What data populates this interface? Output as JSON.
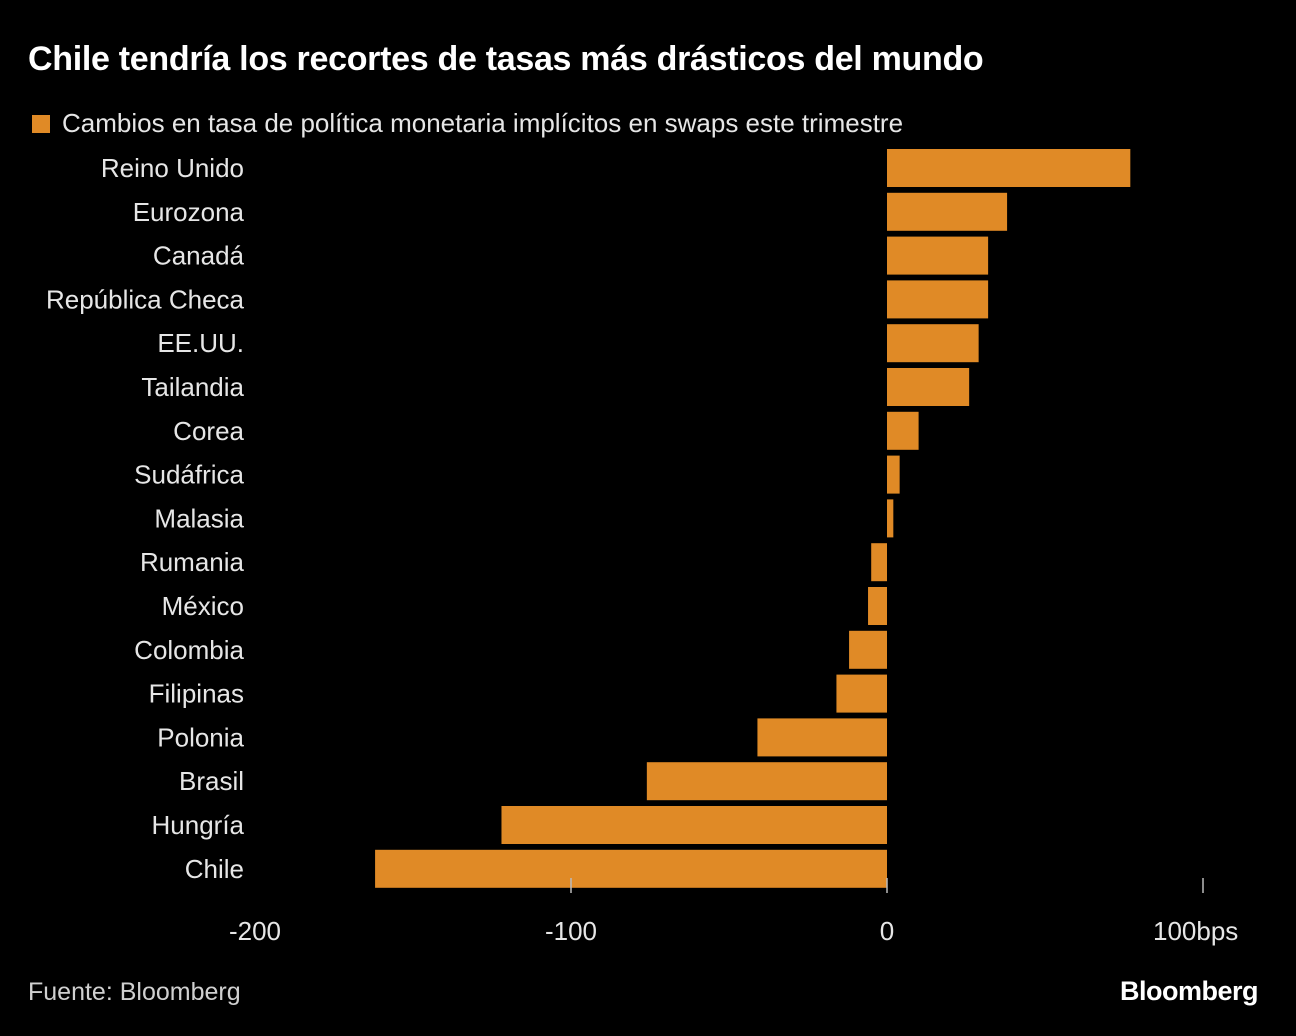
{
  "chart_data": {
    "type": "bar",
    "orientation": "horizontal",
    "title": "Chile tendría los recortes de tasas más drásticos del mundo",
    "legend": [
      "Cambios en tasa de política monetaria implícitos en swaps este trimestre"
    ],
    "legend_placement": "top-left",
    "categories": [
      "Reino Unido",
      "Eurozona",
      "Canadá",
      "República Checa",
      "EE.UU.",
      "Tailandia",
      "Corea",
      "Sudáfrica",
      "Malasia",
      "Rumania",
      "México",
      "Colombia",
      "Filipinas",
      "Polonia",
      "Brasil",
      "Hungría",
      "Chile"
    ],
    "series": [
      {
        "name": "Cambios en tasa de política monetaria implícitos en swaps este trimestre",
        "values": [
          77,
          38,
          32,
          32,
          29,
          26,
          10,
          4,
          2,
          -5,
          -6,
          -12,
          -16,
          -41,
          -76,
          -122,
          -162
        ],
        "color": "#e08a26"
      }
    ],
    "xlim": [
      -200,
      100
    ],
    "xticks": [
      -200,
      -100,
      0,
      100
    ],
    "xtick_labels": [
      "-200",
      "-100",
      "0",
      "100bps"
    ],
    "xlabel": "",
    "ylabel": "",
    "grid": false
  },
  "source": "Fuente: Bloomberg",
  "logo": "Bloomberg"
}
